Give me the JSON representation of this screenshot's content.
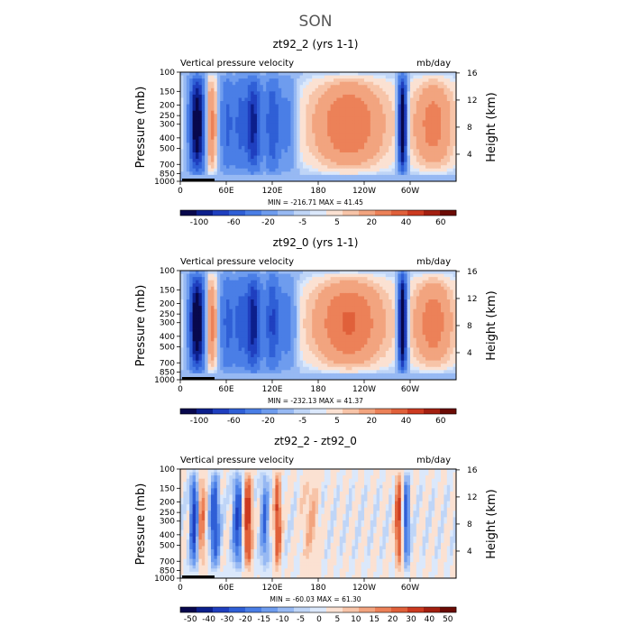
{
  "figure": {
    "title": "SON"
  },
  "chart_data": [
    {
      "type": "heatmap",
      "title": "zt92_2 (yrs 1-1)",
      "left_label": "Vertical pressure velocity",
      "right_label": "mb/day",
      "ylabel": "Pressure (mb)",
      "y2label": "Height (km)",
      "x_ticks": [
        "0",
        "60E",
        "120E",
        "180",
        "120W",
        "60W"
      ],
      "y_ticks": [
        "100",
        "150",
        "200",
        "250",
        "300",
        "400",
        "500",
        "700",
        "850",
        "1000"
      ],
      "y2_ticks": [
        "16",
        "12",
        "8",
        "4"
      ],
      "stats": "MIN = -216.71   MAX =  41.45",
      "colorbar_labels": [
        "-100",
        "-60",
        "-20",
        "-5",
        "5",
        "20",
        "40",
        "60"
      ],
      "min": -216.71,
      "max": 41.45
    },
    {
      "type": "heatmap",
      "title": "zt92_0 (yrs 1-1)",
      "left_label": "Vertical pressure velocity",
      "right_label": "mb/day",
      "ylabel": "Pressure (mb)",
      "y2label": "Height (km)",
      "x_ticks": [
        "0",
        "60E",
        "120E",
        "180",
        "120W",
        "60W"
      ],
      "y_ticks": [
        "100",
        "150",
        "200",
        "250",
        "300",
        "400",
        "500",
        "700",
        "850",
        "1000"
      ],
      "y2_ticks": [
        "16",
        "12",
        "8",
        "4"
      ],
      "stats": "MIN = -232.13   MAX =  41.37",
      "colorbar_labels": [
        "-100",
        "-60",
        "-20",
        "-5",
        "5",
        "20",
        "40",
        "60"
      ],
      "min": -232.13,
      "max": 41.37
    },
    {
      "type": "heatmap",
      "title": "zt92_2 - zt92_0",
      "left_label": "Vertical pressure velocity",
      "right_label": "mb/day",
      "ylabel": "Pressure (mb)",
      "y2label": "Height (km)",
      "x_ticks": [
        "0",
        "60E",
        "120E",
        "180",
        "120W",
        "60W"
      ],
      "y_ticks": [
        "100",
        "150",
        "200",
        "250",
        "300",
        "400",
        "500",
        "700",
        "850",
        "1000"
      ],
      "y2_ticks": [
        "16",
        "12",
        "8",
        "4"
      ],
      "stats": "MIN = -60.03   MAX =  61.30",
      "colorbar_labels": [
        "-50",
        "-40",
        "-30",
        "-20",
        "-15",
        "-10",
        "-5",
        "0",
        "5",
        "10",
        "15",
        "20",
        "30",
        "40",
        "50"
      ],
      "min": -60.03,
      "max": 61.3
    }
  ],
  "colors": {
    "cb_main": [
      "#08084d",
      "#0c1f8c",
      "#1f3fbf",
      "#2f5fd6",
      "#4a7ee6",
      "#6e9cee",
      "#97b9f3",
      "#bfd5f7",
      "#dbe8fb",
      "#fbe1d2",
      "#f7c4a8",
      "#f2a47f",
      "#ec8158",
      "#e0603a",
      "#cc3a20",
      "#a31f10",
      "#6b0b05"
    ],
    "cb_diff": [
      "#08084d",
      "#0c1f8c",
      "#1f3fbf",
      "#2f5fd6",
      "#4a7ee6",
      "#6e9cee",
      "#97b9f3",
      "#bfd5f7",
      "#dbe8fb",
      "#fbe1d2",
      "#f7c4a8",
      "#f2a47f",
      "#ec8158",
      "#e0603a",
      "#cc3a20",
      "#a31f10",
      "#6b0b05"
    ]
  }
}
